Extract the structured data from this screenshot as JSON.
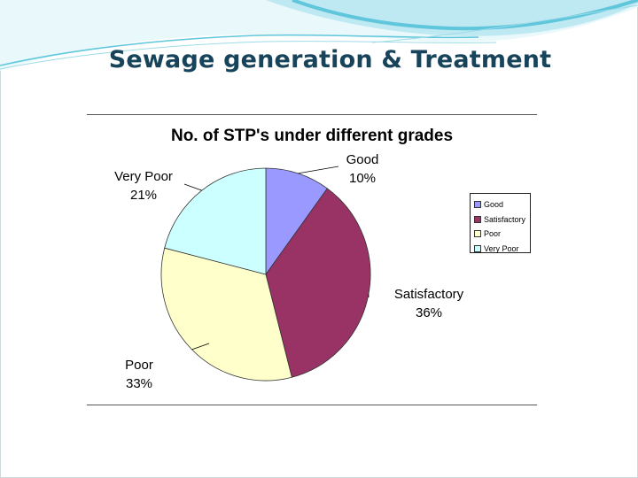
{
  "slide": {
    "title": "Sewage generation & Treatment",
    "header_colors": [
      "#bfe9f2",
      "#5fc6dc",
      "#e9f8fb"
    ]
  },
  "chart_data": {
    "type": "pie",
    "title": "No. of STP's under different grades",
    "legend_position": "right",
    "slices": [
      {
        "name": "Good",
        "value": 10,
        "label": "10%",
        "color": "#9999ff"
      },
      {
        "name": "Satisfactory",
        "value": 36,
        "label": "36%",
        "color": "#993366"
      },
      {
        "name": "Poor",
        "value": 33,
        "label": "33%",
        "color": "#ffffcc"
      },
      {
        "name": "Very Poor",
        "value": 21,
        "label": "21%",
        "color": "#ccffff"
      }
    ],
    "legend": [
      "Good",
      "Satisfactory",
      "Poor",
      "Very Poor"
    ]
  }
}
